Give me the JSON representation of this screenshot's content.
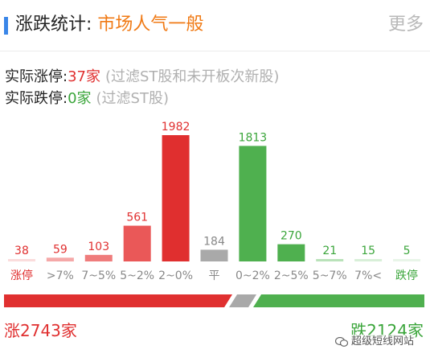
{
  "header": {
    "title": "涨跌统计:",
    "mood": "市场人气一般",
    "more": "更多",
    "accent_color": "#3a86e8"
  },
  "stats": {
    "limit_up_label": "实际涨停:",
    "limit_up_value": "37家",
    "limit_up_note": "(过滤ST股和未开板次新股)",
    "limit_down_label": "实际跌停:",
    "limit_down_value": "0家",
    "limit_down_note": "(过滤ST股)"
  },
  "chart_data": {
    "type": "bar",
    "categories": [
      "涨停",
      ">7%",
      "7~5%",
      "5~2%",
      "2~0%",
      "平",
      "0~2%",
      "2~5%",
      "5~7%",
      "7%<",
      "跌停"
    ],
    "values": [
      38,
      59,
      103,
      561,
      1982,
      184,
      1813,
      270,
      21,
      15,
      5
    ],
    "bar_colors": [
      "#fbdcdc",
      "#f5a8a8",
      "#ef7c7c",
      "#ea5858",
      "#e02f2f",
      "#a9a9a9",
      "#4fb04f",
      "#4fb04f",
      "#b9e2b9",
      "#d8efd8",
      "#e8f5e8"
    ],
    "label_colors": [
      "#e03030",
      "#e03030",
      "#e03030",
      "#e03030",
      "#e03030",
      "#888888",
      "#3aa53a",
      "#3aa53a",
      "#3aa53a",
      "#3aa53a",
      "#3aa53a"
    ],
    "category_colors": [
      "#e03030",
      "#888888",
      "#888888",
      "#888888",
      "#888888",
      "#888888",
      "#888888",
      "#888888",
      "#888888",
      "#888888",
      "#3aa53a"
    ],
    "title": "",
    "xlabel": "",
    "ylabel": ""
  },
  "ratio": {
    "up": 2743,
    "flat": 184,
    "down": 2124,
    "up_color": "#e03030",
    "flat_color": "#a9a9a9",
    "down_color": "#4fb04f"
  },
  "summary": {
    "up_text": "涨2743家",
    "down_text": "跌2124家"
  },
  "watermark": {
    "text": "超级短线网站",
    "icon": "wechat-icon"
  }
}
